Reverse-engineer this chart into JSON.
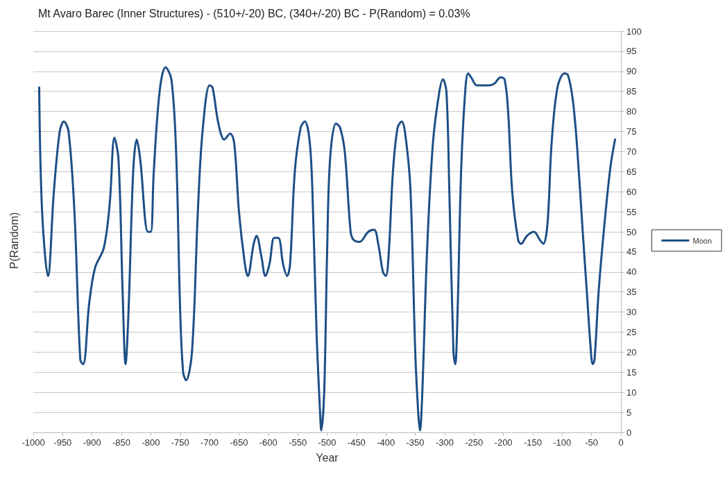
{
  "chart_data": {
    "type": "line",
    "title": "Mt Avaro Barec (Inner Structures) - (510+/-20) BC, (340+/-20) BC - P(Random) = 0.03%",
    "xlabel": "Year",
    "ylabel": "P(Random)",
    "x": [
      -990,
      -985,
      -975,
      -965,
      -955,
      -948,
      -940,
      -930,
      -920,
      -915,
      -905,
      -895,
      -880,
      -870,
      -862,
      -855,
      -848,
      -843,
      -838,
      -830,
      -824,
      -818,
      -805,
      -800,
      -795,
      -785,
      -775,
      -765,
      -757,
      -750,
      -745,
      -740,
      -730,
      -720,
      -712,
      -700,
      -695,
      -685,
      -675,
      -665,
      -658,
      -650,
      -640,
      -635,
      -625,
      -620,
      -612,
      -605,
      -598,
      -590,
      -583,
      -575,
      -568,
      -563,
      -555,
      -545,
      -538,
      -530,
      -525,
      -518,
      -512,
      -510,
      -505,
      -500,
      -495,
      -485,
      -478,
      -470,
      -460,
      -455,
      -445,
      -430,
      -420,
      -413,
      -405,
      -400,
      -395,
      -388,
      -380,
      -373,
      -365,
      -358,
      -350,
      -345,
      -342,
      -338,
      -330,
      -320,
      -310,
      -303,
      -297,
      -292,
      -285,
      -282,
      -278,
      -272,
      -265,
      -260,
      -255,
      -245,
      -235,
      -225,
      -215,
      -205,
      -198,
      -192,
      -185,
      -175,
      -170,
      -160,
      -148,
      -138,
      -132,
      -125,
      -118,
      -108,
      -96,
      -90,
      -82,
      -75,
      -65,
      -58,
      -52,
      -48,
      -45,
      -38,
      -28,
      -18,
      -10
    ],
    "series": [
      {
        "name": "Moon",
        "color": "#1d4f86",
        "values": [
          86,
          55,
          39,
          60,
          75,
          77.5,
          75,
          55,
          18,
          17,
          32,
          41,
          46,
          57,
          73.5,
          68,
          35,
          17,
          30,
          65,
          73,
          68,
          50,
          50,
          65,
          85,
          91,
          88,
          70,
          30,
          15,
          13,
          20,
          55,
          75,
          86.5,
          86,
          77,
          73,
          74.5,
          72,
          55,
          42,
          39,
          47,
          49,
          44,
          39,
          42,
          48.5,
          48.5,
          42,
          39,
          42,
          65,
          76,
          77.5,
          73,
          60,
          25,
          5,
          0.5,
          10,
          45,
          68,
          77,
          76,
          70,
          50,
          48,
          47.5,
          50,
          50.5,
          47,
          40,
          39,
          45,
          65,
          76,
          77.5,
          72,
          60,
          20,
          5,
          0.5,
          10,
          45,
          72,
          84,
          88,
          85,
          60,
          20,
          17,
          30,
          65,
          85,
          89.5,
          88.5,
          86.5,
          86.5,
          86.5,
          87,
          88.5,
          88,
          80,
          60,
          48,
          47,
          49,
          50,
          48,
          47,
          52,
          72,
          86,
          89.5,
          89,
          83,
          72,
          50,
          35,
          22,
          17,
          18,
          35,
          52,
          66,
          73
        ]
      }
    ],
    "xlim": [
      -1000,
      0
    ],
    "xticks": [
      -1000,
      -950,
      -900,
      -850,
      -800,
      -750,
      -700,
      -650,
      -600,
      -550,
      -500,
      -450,
      -400,
      -350,
      -300,
      -250,
      -200,
      -150,
      -100,
      -50,
      0
    ],
    "ylim": [
      0,
      100
    ],
    "yticks": [
      0,
      5,
      10,
      15,
      20,
      25,
      30,
      35,
      40,
      45,
      50,
      55,
      60,
      65,
      70,
      75,
      80,
      85,
      90,
      95,
      100
    ],
    "grid": "y",
    "legend": "right",
    "marker": "none",
    "line_style": "solid"
  }
}
